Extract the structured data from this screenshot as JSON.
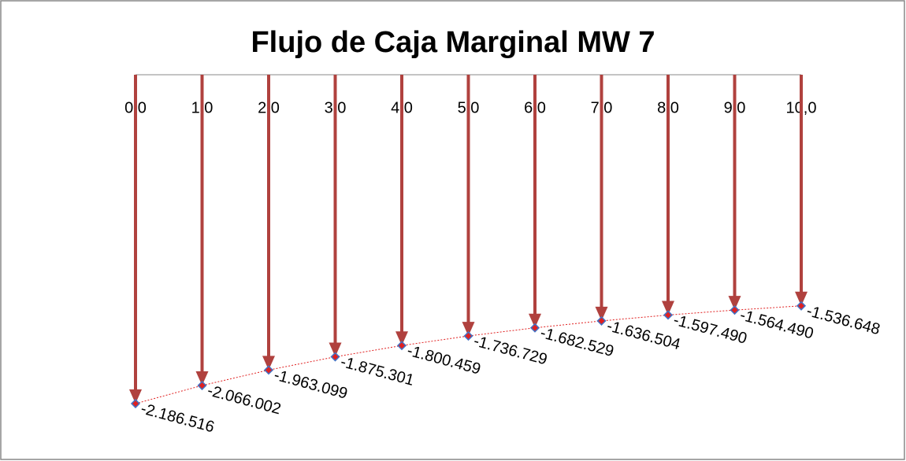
{
  "chart_data": {
    "type": "cashflow",
    "title": "Flujo de Caja Marginal MW 7",
    "x": [
      0,
      1,
      2,
      3,
      4,
      5,
      6,
      7,
      8,
      9,
      10
    ],
    "xlim": [
      0,
      10
    ],
    "xticks": [
      {
        "value": 0,
        "label": "0,0"
      },
      {
        "value": 1,
        "label": "1,0"
      },
      {
        "value": 2,
        "label": "2,0"
      },
      {
        "value": 3,
        "label": "3,0"
      },
      {
        "value": 4,
        "label": "4,0"
      },
      {
        "value": 5,
        "label": "5,0"
      },
      {
        "value": 6,
        "label": "6,0"
      },
      {
        "value": 7,
        "label": "7,0"
      },
      {
        "value": 8,
        "label": "8,0"
      },
      {
        "value": 9,
        "label": "9,0"
      },
      {
        "value": 10,
        "label": "10,0"
      }
    ],
    "values": [
      -2186516,
      -2066002,
      -1963099,
      -1875301,
      -1800459,
      -1736729,
      -1682529,
      -1636504,
      -1597490,
      -1564490,
      -1536648
    ],
    "value_labels": [
      "-2.186.516",
      "-2.066.002",
      "-1.963.099",
      "-1.875.301",
      "-1.800.459",
      "-1.736.729",
      "-1.682.529",
      "-1.636.504",
      "-1.597.490",
      "-1.564.490",
      "-1.536.648"
    ],
    "ylim": [
      -2500000,
      0
    ],
    "arrow_color": "#b0413e",
    "marker_color": "#4472c4",
    "line_color": "#e02020"
  }
}
